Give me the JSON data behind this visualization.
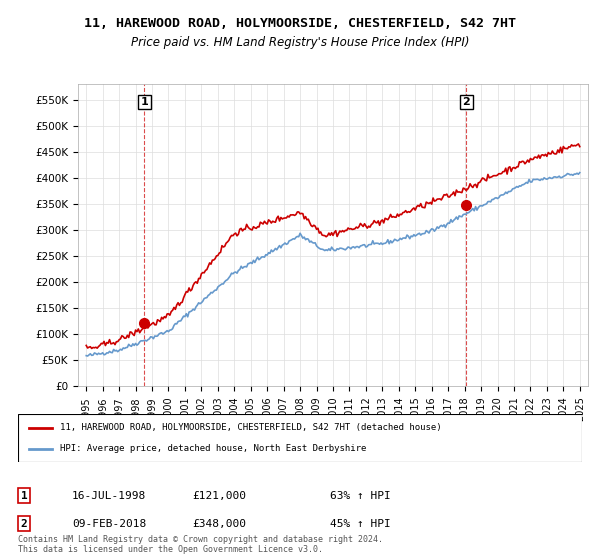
{
  "title": "11, HAREWOOD ROAD, HOLYMOORSIDE, CHESTERFIELD, S42 7HT",
  "subtitle": "Price paid vs. HM Land Registry's House Price Index (HPI)",
  "sale1_label": "1",
  "sale1_date": "16-JUL-1998",
  "sale1_price": 121000,
  "sale1_hpi_pct": "63% ↑ HPI",
  "sale1_year": 1998.54,
  "sale2_label": "2",
  "sale2_date": "09-FEB-2018",
  "sale2_price": 348000,
  "sale2_hpi_pct": "45% ↑ HPI",
  "sale2_year": 2018.11,
  "legend_property": "11, HAREWOOD ROAD, HOLYMOORSIDE, CHESTERFIELD, S42 7HT (detached house)",
  "legend_hpi": "HPI: Average price, detached house, North East Derbyshire",
  "footer": "Contains HM Land Registry data © Crown copyright and database right 2024.\nThis data is licensed under the Open Government Licence v3.0.",
  "property_color": "#cc0000",
  "hpi_color": "#6699cc",
  "ylim": [
    0,
    580000
  ],
  "yticks": [
    0,
    50000,
    100000,
    150000,
    200000,
    250000,
    300000,
    350000,
    400000,
    450000,
    500000,
    550000
  ],
  "xlim_start": 1994.5,
  "xlim_end": 2025.5
}
